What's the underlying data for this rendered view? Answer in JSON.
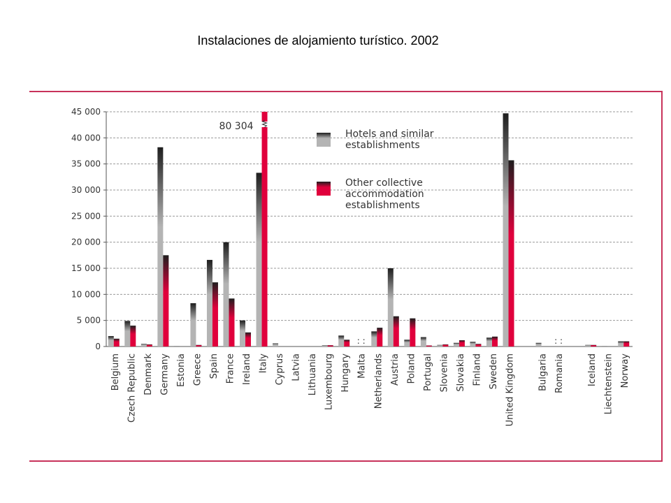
{
  "chart_data": {
    "type": "bar",
    "title": "Instalaciones de alojamiento turístico. 2002",
    "categories": [
      "Belgium",
      "Czech Republic",
      "Denmark",
      "Germany",
      "Estonia",
      "Greece",
      "Spain",
      "France",
      "Ireland",
      "Italy",
      "Cyprus",
      "Latvia",
      "Lithuania",
      "Luxembourg",
      "Hungary",
      "Malta",
      "Netherlands",
      "Austria",
      "Poland",
      "Portugal",
      "Slovenia",
      "Slovakia",
      "Finland",
      "Sweden",
      "United Kingdom",
      null,
      "Bulgaria",
      "Romania",
      null,
      "Iceland",
      "Liechtenstein",
      "Norway"
    ],
    "series": [
      {
        "name": "Hotels and similar establishments",
        "color": "#b4b4b4",
        "values": [
          2000,
          4900,
          500,
          38200,
          100,
          8300,
          16600,
          20000,
          5000,
          33300,
          600,
          0,
          0,
          250,
          2100,
          null,
          2900,
          15000,
          1300,
          1800,
          300,
          700,
          900,
          1700,
          44700,
          null,
          700,
          null,
          null,
          300,
          100,
          1000
        ]
      },
      {
        "name": "Other collective accommodation establishments",
        "color": "#e0003c",
        "values": [
          1500,
          4000,
          400,
          17500,
          0,
          300,
          12300,
          9200,
          2700,
          80304,
          0,
          0,
          0,
          250,
          1300,
          null,
          3600,
          5800,
          5400,
          200,
          400,
          1200,
          500,
          1900,
          35700,
          null,
          0,
          null,
          null,
          300,
          0,
          1000
        ],
        "value_labels": [
          null,
          null,
          null,
          null,
          null,
          null,
          null,
          null,
          null,
          "80 304",
          null,
          null,
          null,
          null,
          null,
          null,
          null,
          null,
          null,
          null,
          null,
          null,
          null,
          null,
          null,
          null,
          null,
          null,
          null,
          null,
          null,
          null
        ]
      }
    ],
    "not_available_label": ": :",
    "ylim": [
      0,
      45000
    ],
    "yticks": [
      0,
      {
        "value": 5000,
        "label": "5 000"
      },
      {
        "value": 10000,
        "label": "10 000"
      },
      {
        "value": 15000,
        "label": "15 000"
      },
      {
        "value": 20000,
        "label": "20 000"
      },
      {
        "value": 25000,
        "label": "25 000"
      },
      {
        "value": 30000,
        "label": "30 000"
      },
      {
        "value": 35000,
        "label": "35 000"
      },
      {
        "value": 40000,
        "label": "40 000"
      },
      {
        "value": 45000,
        "label": "45 000"
      }
    ],
    "grid": true
  }
}
